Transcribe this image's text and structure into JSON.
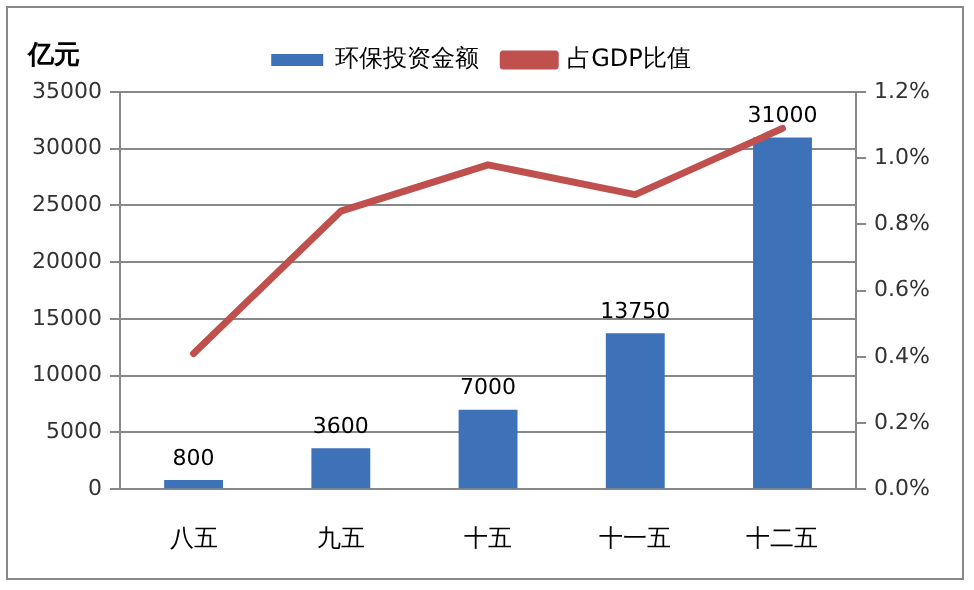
{
  "chart_data": {
    "type": "bar",
    "ylabel": "亿元",
    "categories": [
      "八五",
      "九五",
      "十五",
      "十一五",
      "十二五"
    ],
    "series": [
      {
        "name": "环保投资金额",
        "color": "#3d72b8",
        "values": [
          800,
          3600,
          7000,
          13750,
          31000
        ],
        "value_labels": [
          "800",
          "3600",
          "7000",
          "13750",
          "31000"
        ]
      },
      {
        "name": "占GDP比值",
        "type": "line",
        "axis": "y2",
        "color": "#c0504d",
        "values": [
          0.41,
          0.84,
          0.98,
          0.89,
          1.09
        ]
      }
    ],
    "ylim": [
      0,
      35000
    ],
    "yticks": [
      0,
      5000,
      10000,
      15000,
      20000,
      25000,
      30000,
      35000
    ],
    "y2lim": [
      0,
      1.2
    ],
    "y2ticks": [
      {
        "value": 0,
        "label": "0.0%"
      },
      {
        "value": 0.2,
        "label": "0.2%"
      },
      {
        "value": 0.4,
        "label": "0.4%"
      },
      {
        "value": 0.6,
        "label": "0.6%"
      },
      {
        "value": 0.8,
        "label": "0.8%"
      },
      {
        "value": 1,
        "label": "1.0%"
      },
      {
        "value": 1.2,
        "label": "1.2%"
      }
    ],
    "grid": "y",
    "legend": "top",
    "marker": "none"
  }
}
